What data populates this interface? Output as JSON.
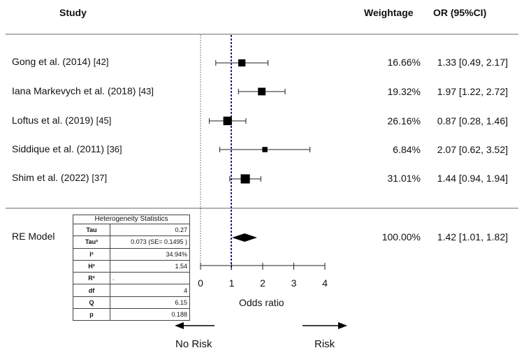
{
  "header": {
    "study": "Study",
    "weightage": "Weightage",
    "or_ci": "OR (95%CI)"
  },
  "chart_data": {
    "type": "forest",
    "xlabel": "Odds ratio",
    "xlim": [
      0,
      4
    ],
    "xticks": [
      0,
      1,
      2,
      3,
      4
    ],
    "reference_line": 1,
    "studies": [
      {
        "name": "Gong et al. (2014)",
        "ref": "[42]",
        "weight": "16.66%",
        "or_text": "1.33 [0.49, 2.17]",
        "or": 1.33,
        "lo": 0.49,
        "hi": 2.17,
        "w": 16.66
      },
      {
        "name": "Iana Markevych et al. (2018)",
        "ref": "[43]",
        "weight": "19.32%",
        "or_text": "1.97 [1.22, 2.72]",
        "or": 1.97,
        "lo": 1.22,
        "hi": 2.72,
        "w": 19.32
      },
      {
        "name": "Loftus et al. (2019)",
        "ref": "[45]",
        "weight": "26.16%",
        "or_text": "0.87 [0.28, 1.46]",
        "or": 0.87,
        "lo": 0.28,
        "hi": 1.46,
        "w": 26.16
      },
      {
        "name": "Siddique et al. (2011)",
        "ref": "[36]",
        "weight": "6.84%",
        "or_text": "2.07 [0.62, 3.52]",
        "or": 2.07,
        "lo": 0.62,
        "hi": 3.52,
        "w": 6.84
      },
      {
        "name": "Shim et al. (2022)",
        "ref": "[37]",
        "weight": "31.01%",
        "or_text": "1.44 [0.94, 1.94]",
        "or": 1.44,
        "lo": 0.94,
        "hi": 1.94,
        "w": 31.01
      }
    ],
    "summary": {
      "name": "RE Model",
      "weight": "100.00%",
      "or_text": "1.42 [1.01, 1.82]",
      "or": 1.42,
      "lo": 1.01,
      "hi": 1.82
    },
    "direction": {
      "left": "No Risk",
      "right": "Risk"
    }
  },
  "heterogeneity": {
    "title": "Heterogeneity Statistics",
    "rows": [
      {
        "key": "Tau",
        "value": "0.27"
      },
      {
        "key": "Tau²",
        "value": "0.073 (SE= 0.1495 )"
      },
      {
        "key": "I²",
        "value": "34.94%"
      },
      {
        "key": "H²",
        "value": "1.54"
      },
      {
        "key": "R²",
        "value": "."
      },
      {
        "key": "df",
        "value": "4"
      },
      {
        "key": "Q",
        "value": "6.15"
      },
      {
        "key": "p",
        "value": "0.188"
      }
    ]
  }
}
